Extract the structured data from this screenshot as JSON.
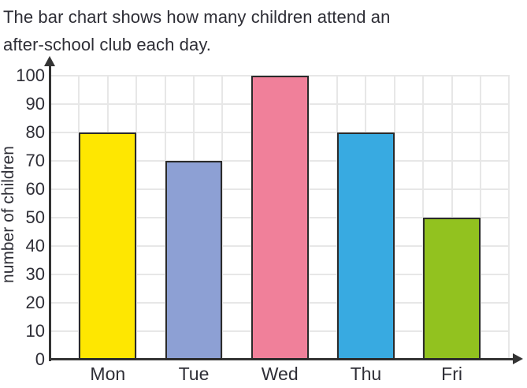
{
  "description": {
    "line1": "The bar chart shows how many children attend an",
    "line2": "after-school club each day."
  },
  "chart_data": {
    "type": "bar",
    "title": "",
    "xlabel": "",
    "ylabel": "number of children",
    "categories": [
      "Mon",
      "Tue",
      "Wed",
      "Thu",
      "Fri"
    ],
    "values": [
      80,
      70,
      100,
      80,
      50
    ],
    "bar_colors": [
      "#FEE701",
      "#8DA0D4",
      "#F0809A",
      "#38AAE1",
      "#92C21F"
    ],
    "ylim": [
      0,
      100
    ],
    "yticks": [
      0,
      10,
      20,
      30,
      40,
      50,
      60,
      70,
      80,
      90,
      100
    ],
    "grid": true,
    "legend": false,
    "colors": {
      "background": "#FFFFFF",
      "bar_border": "#2B2B2B",
      "grid": "#E7E7E7",
      "axis": "#343434",
      "text": "#2E2E36"
    }
  }
}
